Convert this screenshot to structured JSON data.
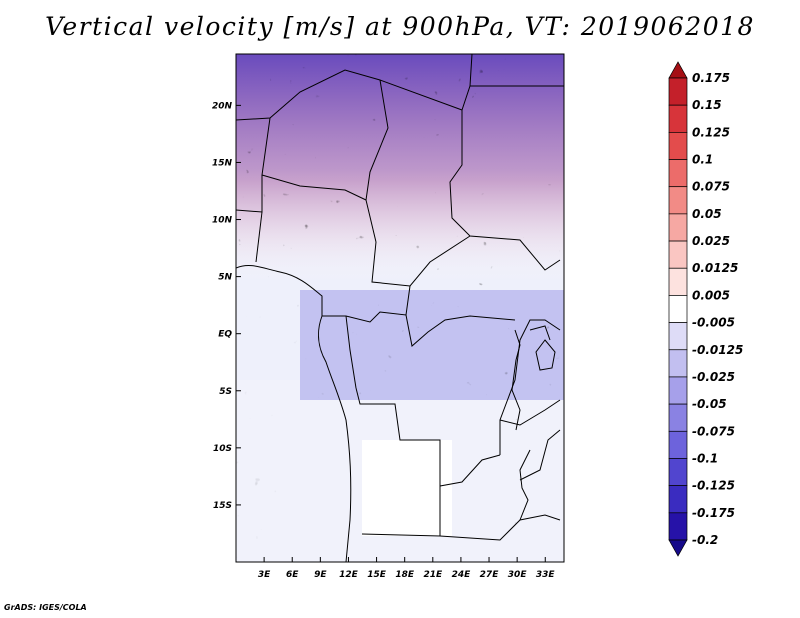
{
  "title": "Vertical velocity [m/s] at 900hPa, VT: 2019062018",
  "map": {
    "lon_range": [
      0,
      35
    ],
    "lat_range": [
      -20,
      24.5
    ],
    "lat_ticks": [
      {
        "value": 20,
        "label": "20N"
      },
      {
        "value": 15,
        "label": "15N"
      },
      {
        "value": 10,
        "label": "10N"
      },
      {
        "value": 5,
        "label": "5N"
      },
      {
        "value": 0,
        "label": "EQ"
      },
      {
        "value": -5,
        "label": "5S"
      },
      {
        "value": -10,
        "label": "10S"
      },
      {
        "value": -15,
        "label": "15S"
      }
    ],
    "lon_ticks": [
      {
        "value": 3,
        "label": "3E"
      },
      {
        "value": 6,
        "label": "6E"
      },
      {
        "value": 9,
        "label": "9E"
      },
      {
        "value": 12,
        "label": "12E"
      },
      {
        "value": 15,
        "label": "15E"
      },
      {
        "value": 18,
        "label": "18E"
      },
      {
        "value": 21,
        "label": "21E"
      },
      {
        "value": 24,
        "label": "24E"
      },
      {
        "value": 27,
        "label": "27E"
      },
      {
        "value": 30,
        "label": "30E"
      },
      {
        "value": 33,
        "label": "33E"
      }
    ]
  },
  "colorbar": {
    "labels": [
      "0.175",
      "0.15",
      "0.125",
      "0.1",
      "0.075",
      "0.05",
      "0.025",
      "0.0125",
      "0.005",
      "-0.005",
      "-0.0125",
      "-0.025",
      "-0.05",
      "-0.075",
      "-0.1",
      "-0.125",
      "-0.175",
      "-0.2"
    ],
    "colors": [
      "#a50f15",
      "#c4202a",
      "#d7343a",
      "#e34c4c",
      "#ec6c6a",
      "#f28b86",
      "#f6a8a3",
      "#fac6c2",
      "#fde2df",
      "#ffffff",
      "#dedcf7",
      "#c2bff0",
      "#a6a0ea",
      "#8a82e3",
      "#6d63dc",
      "#5145cf",
      "#3a2cc0",
      "#2612a8",
      "#160a8a"
    ]
  },
  "credit": "GrADS: IGES/COLA"
}
